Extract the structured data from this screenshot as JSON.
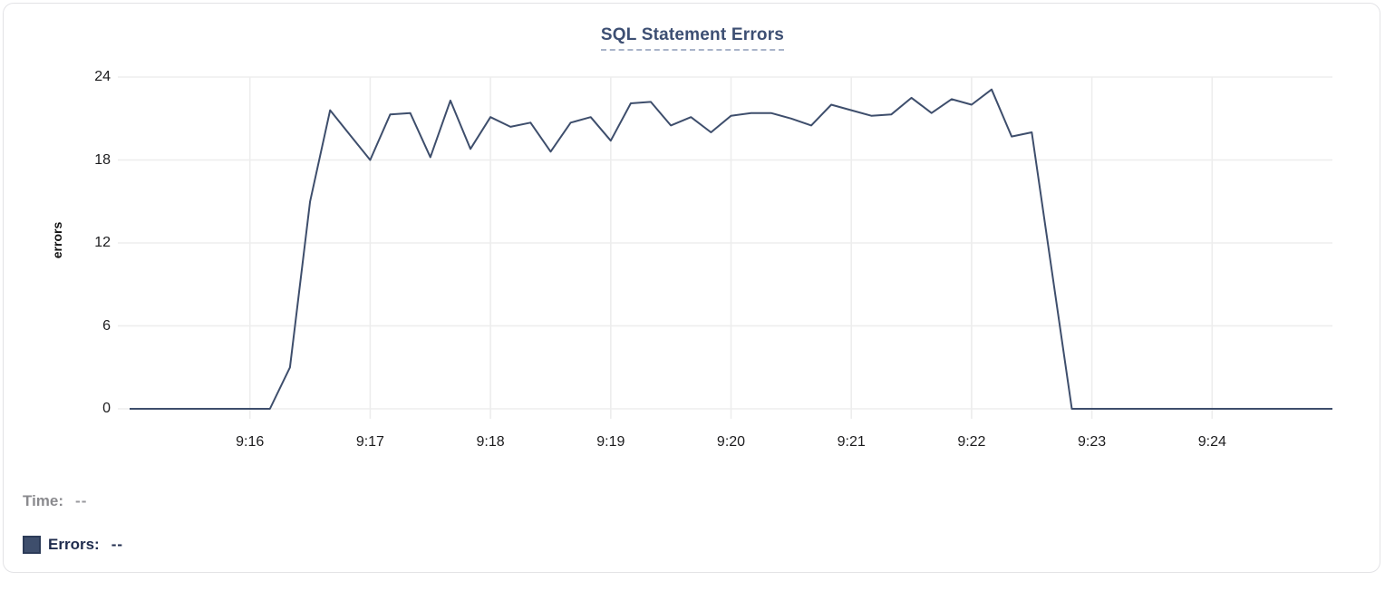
{
  "title": "SQL Statement Errors",
  "legend": {
    "time_label": "Time:",
    "time_value": "--",
    "errors_label": "Errors:",
    "errors_value": "--",
    "swatch_color": "#3e4e6c"
  },
  "colors": {
    "line": "#3e4e6c",
    "title": "#3d4f73",
    "title_underline": "#a9b4c9",
    "grid": "#ededed",
    "tick_label": "#1c1c1e",
    "time_gray": "#8a8a8e",
    "legend_navy": "#1f2c4e",
    "card_border": "#e3e3e6"
  },
  "chart_data": {
    "type": "line",
    "title": "SQL Statement Errors",
    "xlabel": "",
    "ylabel": "errors",
    "ylim": [
      0,
      24
    ],
    "y_ticks": [
      "24",
      "18",
      "12",
      "6",
      "0"
    ],
    "x_ticks": [
      "9:16",
      "9:17",
      "9:18",
      "9:19",
      "9:20",
      "9:21",
      "9:22",
      "9:23",
      "9:24"
    ],
    "x_range": [
      "9:15:00",
      "9:25:00"
    ],
    "sample_interval_seconds": 10,
    "grid": true,
    "legend_position": "bottom-left",
    "series": [
      {
        "name": "Errors",
        "color": "#3e4e6c",
        "x": [
          "9:15:00",
          "9:15:10",
          "9:15:20",
          "9:15:30",
          "9:15:40",
          "9:15:50",
          "9:16:00",
          "9:16:10",
          "9:16:20",
          "9:16:30",
          "9:16:40",
          "9:16:50",
          "9:17:00",
          "9:17:10",
          "9:17:20",
          "9:17:30",
          "9:17:40",
          "9:17:50",
          "9:18:00",
          "9:18:10",
          "9:18:20",
          "9:18:30",
          "9:18:40",
          "9:18:50",
          "9:19:00",
          "9:19:10",
          "9:19:20",
          "9:19:30",
          "9:19:40",
          "9:19:50",
          "9:20:00",
          "9:20:10",
          "9:20:20",
          "9:20:30",
          "9:20:40",
          "9:20:50",
          "9:21:00",
          "9:21:10",
          "9:21:20",
          "9:21:30",
          "9:21:40",
          "9:21:50",
          "9:22:00",
          "9:22:10",
          "9:22:20",
          "9:22:30",
          "9:22:40",
          "9:22:50",
          "9:23:00",
          "9:23:10",
          "9:23:20",
          "9:23:30",
          "9:23:40",
          "9:23:50",
          "9:24:00",
          "9:24:10",
          "9:24:20",
          "9:24:30",
          "9:24:40",
          "9:24:50",
          "9:25:00"
        ],
        "values": [
          0,
          0,
          0,
          0,
          0,
          0,
          0,
          0,
          3,
          15,
          21.6,
          19.8,
          18,
          21.3,
          21.4,
          18.2,
          22.3,
          18.8,
          21.1,
          20.4,
          20.7,
          18.6,
          20.7,
          21.1,
          19.4,
          22.1,
          22.2,
          20.5,
          21.1,
          20,
          21.2,
          21.4,
          21.4,
          21,
          20.5,
          22,
          21.6,
          21.2,
          21.3,
          22.5,
          21.4,
          22.4,
          22,
          23.1,
          19.7,
          20,
          10,
          0,
          0,
          0,
          0,
          0,
          0,
          0,
          0,
          0,
          0,
          0,
          0,
          0,
          0
        ]
      }
    ]
  }
}
